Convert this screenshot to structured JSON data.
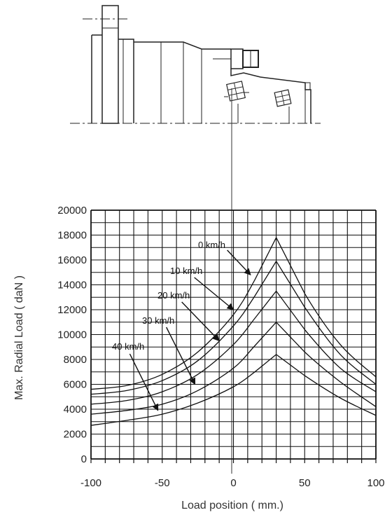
{
  "chart_data": {
    "type": "line",
    "title": "",
    "xlabel": "Load position ( mm.)",
    "ylabel": "Max. Radial Load ( daN )",
    "xlim": [
      -100,
      100
    ],
    "ylim": [
      0,
      20000
    ],
    "x_ticks": [
      -100,
      -50,
      0,
      50,
      100
    ],
    "y_ticks": [
      0,
      2000,
      4000,
      6000,
      8000,
      10000,
      12000,
      14000,
      16000,
      18000,
      20000
    ],
    "grid": true,
    "series": [
      {
        "name": "0 km/h",
        "x": [
          -100,
          -75,
          -50,
          -25,
          0,
          15,
          30,
          50,
          75,
          100
        ],
        "y": [
          5600,
          5900,
          6800,
          8600,
          11600,
          14400,
          17800,
          13300,
          9200,
          6600
        ]
      },
      {
        "name": "10 km/h",
        "x": [
          -100,
          -75,
          -50,
          -25,
          0,
          15,
          30,
          50,
          75,
          100
        ],
        "y": [
          5200,
          5500,
          6300,
          7900,
          10700,
          13100,
          15900,
          12200,
          8400,
          6000
        ]
      },
      {
        "name": "20 km/h",
        "x": [
          -100,
          -75,
          -50,
          -25,
          0,
          15,
          30,
          50,
          75,
          100
        ],
        "y": [
          4400,
          4700,
          5400,
          6800,
          9200,
          11300,
          13500,
          10400,
          7300,
          5400
        ]
      },
      {
        "name": "30 km/h",
        "x": [
          -100,
          -75,
          -50,
          -25,
          0,
          15,
          30,
          50,
          75,
          100
        ],
        "y": [
          3600,
          3900,
          4400,
          5500,
          7300,
          9100,
          11000,
          8600,
          6200,
          4200
        ]
      },
      {
        "name": "40 km/h",
        "x": [
          -100,
          -75,
          -50,
          -25,
          0,
          15,
          30,
          50,
          75,
          100
        ],
        "y": [
          2700,
          3100,
          3600,
          4500,
          5800,
          7000,
          8400,
          6700,
          4900,
          3500
        ]
      }
    ],
    "annotations": [
      {
        "label": "0 km/h",
        "points_to": [
          12,
          14800
        ]
      },
      {
        "label": "10 km/h",
        "points_to": [
          0,
          12000
        ]
      },
      {
        "label": "20 km/h",
        "points_to": [
          -10,
          9500
        ]
      },
      {
        "label": "30 km/h",
        "points_to": [
          -27,
          6000
        ]
      },
      {
        "label": "40 km/h",
        "points_to": [
          -53,
          3900
        ]
      }
    ]
  }
}
